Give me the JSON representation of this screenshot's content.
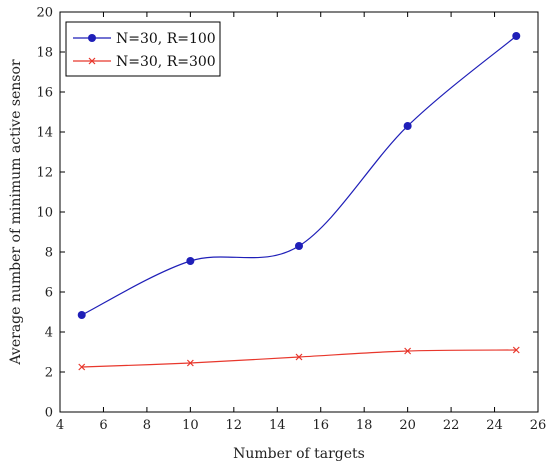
{
  "chart_data": {
    "type": "line",
    "title": "",
    "xlabel": "Number of targets",
    "ylabel": "Average number of minimum active sensor",
    "xlim": [
      4,
      26
    ],
    "ylim": [
      0,
      20
    ],
    "xticks": [
      "4",
      "6",
      "8",
      "10",
      "12",
      "14",
      "16",
      "18",
      "20",
      "22",
      "24",
      "26"
    ],
    "yticks": [
      "0",
      "2",
      "4",
      "6",
      "8",
      "10",
      "12",
      "14",
      "16",
      "18",
      "20"
    ],
    "grid": false,
    "legend_position": "top-left",
    "x": [
      5,
      10,
      15,
      20,
      25
    ],
    "series": [
      {
        "name": "N=30, R=100",
        "values": [
          4.85,
          7.55,
          8.3,
          14.3,
          18.8
        ],
        "color": "#1f1fb8",
        "marker": "circle",
        "smooth": true
      },
      {
        "name": "N=30, R=300",
        "values": [
          2.25,
          2.45,
          2.75,
          3.05,
          3.1
        ],
        "color": "#e8372c",
        "marker": "x",
        "smooth": true
      }
    ]
  }
}
